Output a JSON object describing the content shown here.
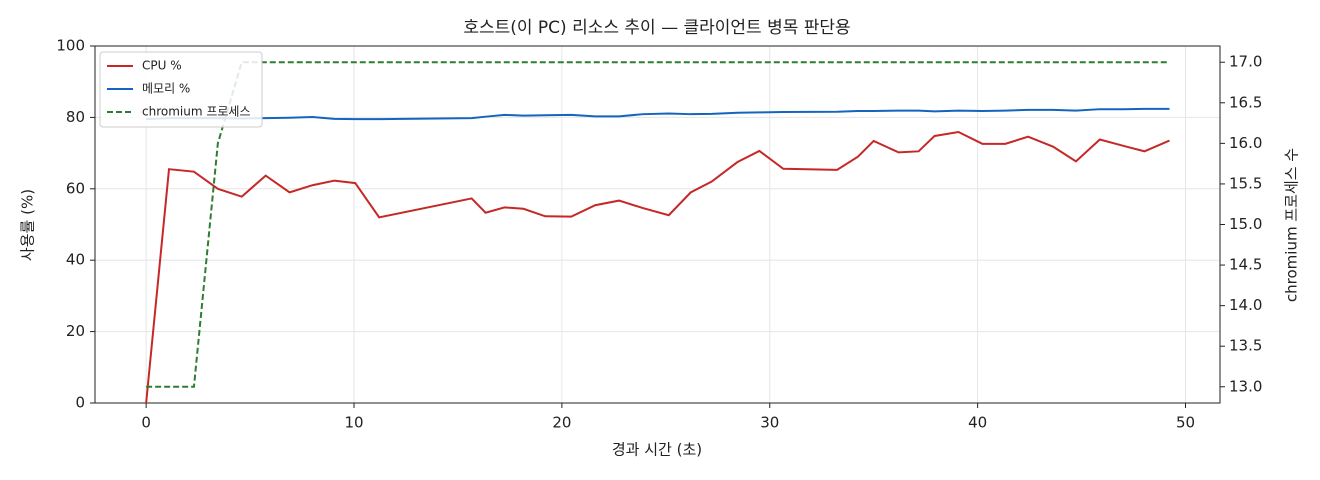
{
  "chart_data": {
    "type": "line",
    "title": "호스트(이 PC) 리소스 추이 — 클라이언트 병목 판단용",
    "x_label": "경과 시간 (초)",
    "y_label": "사용률 (%)",
    "y2_label": "chromium 프로세스 수",
    "x": [
      0,
      1.1,
      2.3,
      3.45,
      4.6,
      5.75,
      6.9,
      8.0,
      9.05,
      10.06,
      11.21,
      15.66,
      16.33,
      17.24,
      18.15,
      19.2,
      20.45,
      21.6,
      22.75,
      23.9,
      25.14,
      26.2,
      27.2,
      28.45,
      29.5,
      30.65,
      33.24,
      34.24,
      35.0,
      36.2,
      37.16,
      37.93,
      39.08,
      40.23,
      41.33,
      42.43,
      43.63,
      44.73,
      45.88,
      47.03,
      48.03,
      49.23
    ],
    "series": [
      {
        "name": "CPU %",
        "color": "#c62828",
        "values": [
          0,
          65.5,
          64.8,
          60,
          57.8,
          63.7,
          59,
          61,
          62.3,
          61.6,
          52,
          57.3,
          53.3,
          54.8,
          54.4,
          52.3,
          52.2,
          55.4,
          56.7,
          54.6,
          52.6,
          59,
          62,
          67.5,
          70.6,
          65.6,
          65.3,
          69,
          73.4,
          70.2,
          70.5,
          74.8,
          75.9,
          72.6,
          72.6,
          74.6,
          71.8,
          67.7,
          73.8,
          72,
          70.5,
          73.5
        ]
      },
      {
        "name": "메모리 %",
        "color": "#1565c0",
        "values": [
          79.5,
          79.8,
          79.8,
          79.8,
          79.7,
          79.8,
          79.9,
          80.1,
          79.6,
          79.5,
          79.5,
          79.8,
          80.2,
          80.7,
          80.5,
          80.6,
          80.7,
          80.3,
          80.3,
          80.9,
          81.1,
          80.9,
          81.0,
          81.3,
          81.4,
          81.5,
          81.6,
          81.8,
          81.8,
          81.9,
          81.9,
          81.7,
          81.9,
          81.8,
          81.9,
          82.1,
          82.1,
          81.9,
          82.3,
          82.3,
          82.4,
          82.4
        ]
      },
      {
        "name": "chromium 프로세스",
        "color": "#2e7d32",
        "dashed": true,
        "axis": "y2",
        "values": [
          13,
          13,
          13,
          16,
          17,
          17,
          17,
          17,
          17,
          17,
          17,
          17,
          17,
          17,
          17,
          17,
          17,
          17,
          17,
          17,
          17,
          17,
          17,
          17,
          17,
          17,
          17,
          17,
          17,
          17,
          17,
          17,
          17,
          17,
          17,
          17,
          17,
          17,
          17,
          17,
          17,
          17
        ]
      }
    ],
    "xlim": [
      -2.46,
      51.66
    ],
    "xticks": [
      0,
      10,
      20,
      30,
      40,
      50
    ],
    "ylim": [
      0,
      100
    ],
    "yticks": [
      0,
      20,
      40,
      60,
      80,
      100
    ],
    "y2lim": [
      12.8,
      17.2
    ],
    "y2ticks": [
      {
        "value": 13,
        "label": "13.0"
      },
      13.5,
      {
        "value": 14,
        "label": "14.0"
      },
      14.5,
      {
        "value": 15,
        "label": "15.0"
      },
      15.5,
      {
        "value": 16,
        "label": "16.0"
      },
      16.5,
      {
        "value": 17,
        "label": "17.0"
      }
    ],
    "grid": true,
    "legend": "upper left"
  }
}
